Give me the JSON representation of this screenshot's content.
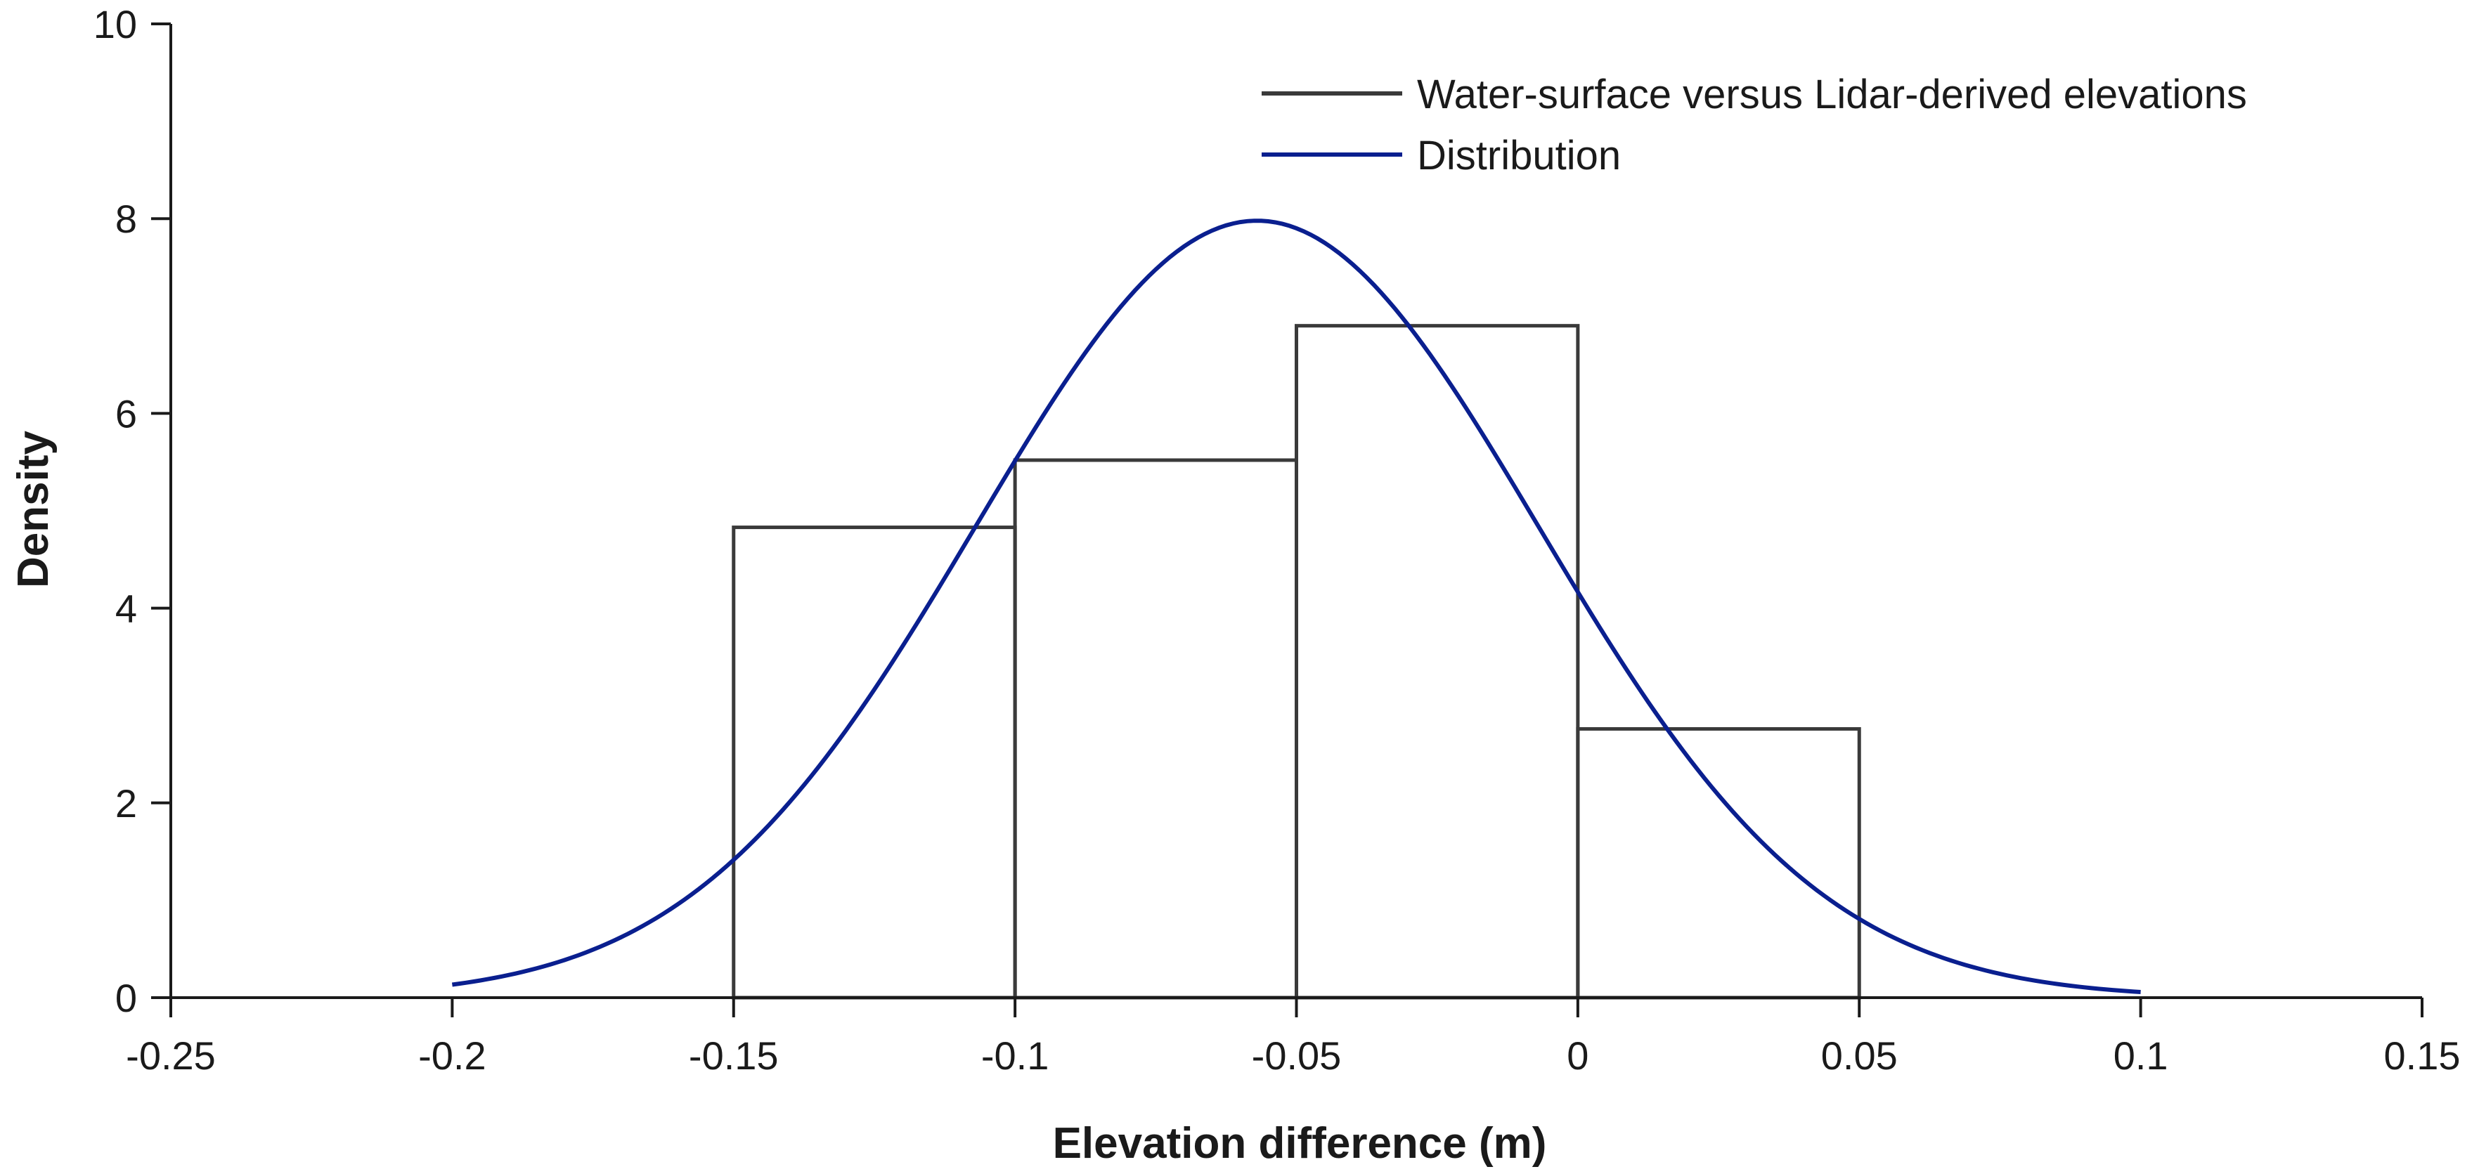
{
  "chart_data": {
    "type": "histogram",
    "title": "",
    "xlabel": "Elevation difference (m)",
    "ylabel": "Density",
    "xlim": [
      -0.25,
      0.15
    ],
    "ylim": [
      0,
      10
    ],
    "xticks": [
      -0.25,
      -0.2,
      -0.15,
      -0.1,
      -0.05,
      0,
      0.05,
      0.1,
      0.15
    ],
    "xtick_labels": [
      "-0.25",
      "-0.2",
      "-0.15",
      "-0.1",
      "-0.05",
      "0",
      "0.05",
      "0.1",
      "0.15"
    ],
    "yticks": [
      0,
      2,
      4,
      6,
      8,
      10
    ],
    "ytick_labels": [
      "0",
      "2",
      "4",
      "6",
      "8",
      "10"
    ],
    "grid": false,
    "legend_position": "top-right",
    "series": [
      {
        "name": "Water-surface versus Lidar-derived elevations",
        "kind": "histogram",
        "color": "#3a3a3a",
        "bins": [
          {
            "x0": -0.15,
            "x1": -0.1,
            "density": 4.83
          },
          {
            "x0": -0.1,
            "x1": -0.05,
            "density": 5.52
          },
          {
            "x0": -0.05,
            "x1": 0,
            "density": 6.9
          },
          {
            "x0": 0,
            "x1": 0.05,
            "density": 2.76
          }
        ]
      },
      {
        "name": "Distribution",
        "kind": "normal_curve",
        "color": "#0a1f8f",
        "mean": -0.057,
        "sd": 0.05,
        "x_range": [
          -0.2,
          0.1
        ]
      }
    ]
  }
}
